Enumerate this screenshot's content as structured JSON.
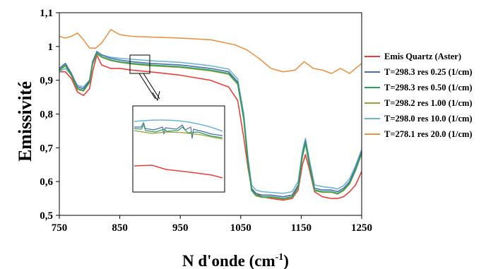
{
  "chart_data": {
    "type": "line",
    "xlabel": "N d'onde (cm",
    "xlabel_sup": "-1",
    "xlabel_end": ")",
    "ylabel": "Emissivité",
    "xlim": [
      750,
      1250
    ],
    "ylim": [
      0.5,
      1.1
    ],
    "x_ticks": [
      "750",
      "850",
      "950",
      "1050",
      "1150",
      "1250"
    ],
    "y_ticks": [
      "0,5",
      "0,6",
      "0,7",
      "0,8",
      "0,9",
      "1",
      "1,1"
    ],
    "grid": false,
    "legend_position": "right",
    "inset": "zoom of the 870–900 cm-1 region",
    "series": [
      {
        "name": "Emis Quartz (Aster)",
        "color": "#e8403c",
        "x": [
          750,
          760,
          770,
          780,
          790,
          800,
          805,
          812,
          820,
          835,
          850,
          870,
          900,
          950,
          1000,
          1030,
          1045,
          1055,
          1062,
          1068,
          1075,
          1085,
          1100,
          1120,
          1135,
          1145,
          1152,
          1157,
          1163,
          1172,
          1185,
          1200,
          1210,
          1220,
          1230,
          1240,
          1250
        ],
        "y": [
          0.925,
          0.925,
          0.905,
          0.865,
          0.855,
          0.875,
          0.925,
          0.975,
          0.945,
          0.935,
          0.935,
          0.93,
          0.925,
          0.915,
          0.9,
          0.88,
          0.84,
          0.73,
          0.64,
          0.58,
          0.565,
          0.555,
          0.55,
          0.545,
          0.55,
          0.575,
          0.65,
          0.68,
          0.64,
          0.57,
          0.555,
          0.55,
          0.55,
          0.555,
          0.57,
          0.59,
          0.63
        ]
      },
      {
        "name": "T=298.3 res 0.25 (1/cm)",
        "color": "#4a6cb0",
        "x": [
          750,
          760,
          770,
          780,
          790,
          800,
          805,
          812,
          820,
          835,
          850,
          870,
          900,
          950,
          1000,
          1030,
          1045,
          1055,
          1062,
          1068,
          1075,
          1085,
          1100,
          1120,
          1135,
          1145,
          1152,
          1157,
          1163,
          1172,
          1185,
          1200,
          1210,
          1220,
          1230,
          1240,
          1250
        ],
        "y": [
          0.935,
          0.95,
          0.92,
          0.88,
          0.875,
          0.9,
          0.955,
          0.985,
          0.975,
          0.965,
          0.96,
          0.955,
          0.95,
          0.945,
          0.935,
          0.925,
          0.895,
          0.79,
          0.66,
          0.58,
          0.565,
          0.56,
          0.56,
          0.555,
          0.56,
          0.59,
          0.68,
          0.72,
          0.66,
          0.58,
          0.575,
          0.575,
          0.57,
          0.58,
          0.6,
          0.64,
          0.69
        ]
      },
      {
        "name": "T=298.3 res 0.50 (1/cm)",
        "color": "#2aa05a",
        "x": [
          750,
          760,
          770,
          780,
          790,
          800,
          805,
          812,
          820,
          835,
          850,
          870,
          900,
          950,
          1000,
          1030,
          1045,
          1055,
          1062,
          1068,
          1075,
          1085,
          1100,
          1120,
          1135,
          1145,
          1152,
          1157,
          1163,
          1172,
          1185,
          1200,
          1210,
          1220,
          1230,
          1240,
          1250
        ],
        "y": [
          0.93,
          0.945,
          0.915,
          0.875,
          0.87,
          0.895,
          0.95,
          0.98,
          0.97,
          0.96,
          0.955,
          0.95,
          0.945,
          0.94,
          0.93,
          0.92,
          0.89,
          0.785,
          0.655,
          0.575,
          0.56,
          0.555,
          0.555,
          0.55,
          0.555,
          0.585,
          0.675,
          0.715,
          0.655,
          0.575,
          0.57,
          0.57,
          0.565,
          0.575,
          0.595,
          0.635,
          0.685
        ]
      },
      {
        "name": "T=298.2 res 1.00 (1/cm)",
        "color": "#9aa13c",
        "x": [
          750,
          760,
          770,
          780,
          790,
          800,
          805,
          812,
          820,
          835,
          850,
          870,
          900,
          950,
          1000,
          1030,
          1045,
          1055,
          1062,
          1068,
          1075,
          1085,
          1100,
          1120,
          1135,
          1145,
          1152,
          1157,
          1163,
          1172,
          1185,
          1200,
          1210,
          1220,
          1230,
          1240,
          1250
        ],
        "y": [
          0.928,
          0.943,
          0.913,
          0.873,
          0.868,
          0.893,
          0.948,
          0.978,
          0.968,
          0.958,
          0.953,
          0.948,
          0.943,
          0.938,
          0.928,
          0.918,
          0.888,
          0.783,
          0.653,
          0.573,
          0.558,
          0.553,
          0.553,
          0.548,
          0.553,
          0.583,
          0.673,
          0.712,
          0.653,
          0.573,
          0.568,
          0.568,
          0.563,
          0.573,
          0.593,
          0.633,
          0.683
        ]
      },
      {
        "name": "T=298.0 res 10.0 (1/cm)",
        "color": "#6fb3d3",
        "x": [
          750,
          760,
          770,
          780,
          790,
          800,
          805,
          812,
          820,
          835,
          850,
          870,
          900,
          950,
          1000,
          1030,
          1045,
          1055,
          1062,
          1068,
          1075,
          1085,
          1100,
          1120,
          1135,
          1145,
          1152,
          1157,
          1163,
          1172,
          1185,
          1200,
          1210,
          1220,
          1230,
          1240,
          1250
        ],
        "y": [
          0.925,
          0.935,
          0.915,
          0.885,
          0.88,
          0.9,
          0.95,
          0.985,
          0.975,
          0.968,
          0.965,
          0.962,
          0.958,
          0.953,
          0.943,
          0.933,
          0.903,
          0.8,
          0.67,
          0.59,
          0.575,
          0.57,
          0.568,
          0.565,
          0.57,
          0.6,
          0.69,
          0.728,
          0.67,
          0.59,
          0.585,
          0.582,
          0.578,
          0.588,
          0.608,
          0.648,
          0.695
        ]
      },
      {
        "name": "T=278.1 res 20.0 (1/cm)",
        "color": "#e8954a",
        "x": [
          750,
          760,
          770,
          780,
          790,
          800,
          810,
          820,
          835,
          850,
          870,
          900,
          950,
          1000,
          1040,
          1060,
          1080,
          1100,
          1120,
          1140,
          1155,
          1170,
          1185,
          1200,
          1215,
          1230,
          1240,
          1250
        ],
        "y": [
          1.03,
          1.025,
          1.03,
          1.04,
          1.02,
          0.995,
          0.995,
          1.01,
          1.05,
          1.035,
          1.03,
          1.028,
          1.025,
          1.02,
          1.005,
          0.99,
          0.965,
          0.935,
          0.925,
          0.93,
          0.955,
          0.935,
          0.93,
          0.92,
          0.935,
          0.92,
          0.935,
          0.95
        ]
      }
    ]
  }
}
